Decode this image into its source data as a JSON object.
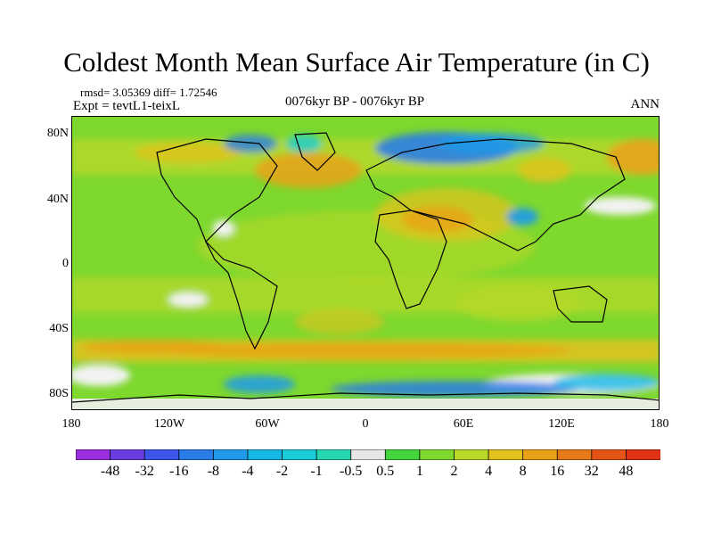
{
  "title": "Coldest Month Mean Surface Air Temperature (in C)",
  "stats": "rmsd= 3.05369 diff= 1.72546",
  "experiment": "Expt = tevtL1-teixL",
  "period": "0076kyr BP - 0076kyr BP",
  "season": "ANN",
  "lat_labels": [
    "80N",
    "40N",
    "0",
    "40S",
    "80S"
  ],
  "lon_labels": [
    "180",
    "120W",
    "60W",
    "0",
    "60E",
    "120E",
    "180"
  ],
  "colorbar": {
    "labels": [
      "-48",
      "-32",
      "-16",
      "-8",
      "-4",
      "-2",
      "-1",
      "-0.5",
      "0.5",
      "1",
      "2",
      "4",
      "8",
      "16",
      "32",
      "48"
    ],
    "colors": [
      "#9b2fe0",
      "#6a3ce0",
      "#3a55e8",
      "#2a7de8",
      "#1f9bea",
      "#17b8e6",
      "#19ccd8",
      "#28d6b0",
      "#e6e6e6",
      "#44d43c",
      "#7ed82e",
      "#b8d82a",
      "#e4c21e",
      "#e8a218",
      "#e67a18",
      "#e45416",
      "#e03214"
    ]
  },
  "palette": {
    "base_green": "#7ed82e",
    "yellow_green": "#b8d82a",
    "orange": "#e8a218",
    "cool_blue": "#2a7de8",
    "white_patch": "#f2f2f2"
  }
}
